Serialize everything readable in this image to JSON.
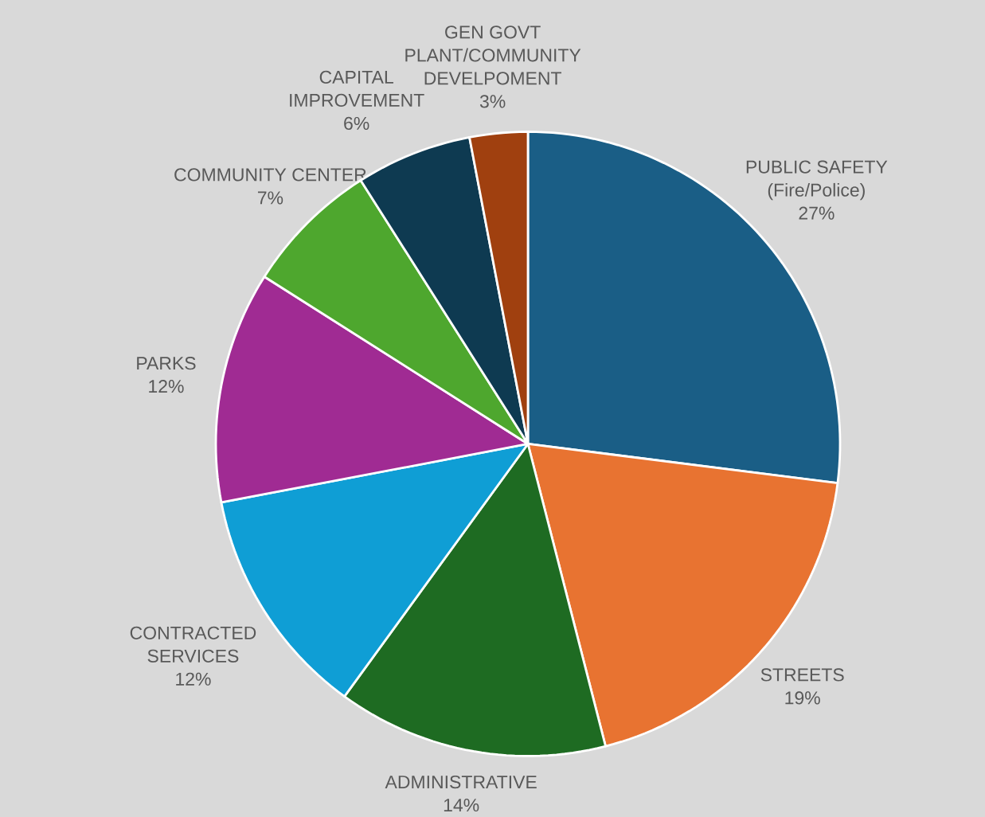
{
  "chart_data": {
    "type": "pie",
    "categories": [
      "PUBLIC SAFETY (Fire/Police)",
      "STREETS",
      "ADMINISTRATIVE",
      "CONTRACTED SERVICES",
      "PARKS",
      "COMMUNITY CENTER",
      "CAPITAL IMPROVEMENT",
      "GEN GOVT PLANT/COMMUNITY DEVELPOMENT"
    ],
    "values": [
      27,
      19,
      14,
      12,
      12,
      7,
      6,
      3
    ],
    "colors": [
      "#1a5e86",
      "#e87331",
      "#1e6b22",
      "#0f9ed5",
      "#a02b93",
      "#4ea72e",
      "#0e3a51",
      "#a0400f"
    ],
    "value_labels": [
      "27%",
      "19%",
      "14%",
      "12%",
      "12%",
      "7%",
      "6%",
      "3%"
    ]
  }
}
